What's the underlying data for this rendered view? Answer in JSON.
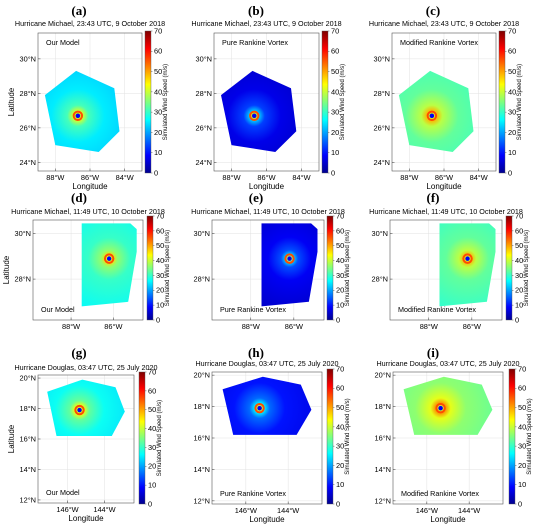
{
  "colors": {
    "jet": [
      "#00008f",
      "#0000ff",
      "#007fff",
      "#00ffff",
      "#7fff7f",
      "#ffff00",
      "#ff7f00",
      "#ff0000",
      "#7f0000"
    ]
  },
  "chart_data": [
    {
      "letter": "(a)",
      "type": "heatmap",
      "title": "Hurricane Michael, 23:43 UTC, 9 October 2018",
      "model": "Our Model",
      "xlabel": "Longitude",
      "ylabel": "Latitude",
      "cbar_label": "Simulated Wind Speed (m/s)",
      "cbar_ticks": [
        "0",
        "10",
        "20",
        "30",
        "40",
        "50",
        "60",
        "70"
      ],
      "clim": [
        0,
        70
      ],
      "xlim": [
        -89,
        -83
      ],
      "ylim": [
        23.5,
        31.5
      ],
      "xticks": [
        {
          "value": -88,
          "label": "88°W"
        },
        {
          "value": -86,
          "label": "86°W"
        },
        {
          "value": -84,
          "label": "84°W"
        }
      ],
      "yticks": [
        {
          "value": 24,
          "label": "24°N"
        },
        {
          "value": 26,
          "label": "26°N"
        },
        {
          "value": 28,
          "label": "28°N"
        },
        {
          "value": 30,
          "label": "30°N"
        }
      ],
      "center": [
        -86.7,
        26.7
      ],
      "polygon": [
        [
          -88.6,
          27.9
        ],
        [
          -86.8,
          29.3
        ],
        [
          -84.6,
          28.3
        ],
        [
          -84.3,
          25.8
        ],
        [
          -85.5,
          24.6
        ],
        [
          -88.0,
          25.0
        ]
      ],
      "background_speed": 23
    },
    {
      "letter": "(b)",
      "type": "heatmap",
      "title": "Hurricane Michael, 23:43 UTC, 9 October 2018",
      "model": "Pure Rankine Vortex",
      "xlabel": "Longitude",
      "ylabel": "",
      "cbar_label": "Simulated Wind Speed (m/s)",
      "cbar_ticks": [
        "0",
        "10",
        "20",
        "30",
        "40",
        "50",
        "60",
        "70"
      ],
      "clim": [
        0,
        70
      ],
      "xlim": [
        -89,
        -83
      ],
      "ylim": [
        23.5,
        31.5
      ],
      "xticks": [
        {
          "value": -88,
          "label": "88°W"
        },
        {
          "value": -86,
          "label": "86°W"
        },
        {
          "value": -84,
          "label": "84°W"
        }
      ],
      "yticks": [
        {
          "value": 24,
          "label": "24°N"
        },
        {
          "value": 26,
          "label": "26°N"
        },
        {
          "value": 28,
          "label": "28°N"
        },
        {
          "value": 30,
          "label": "30°N"
        }
      ],
      "center": [
        -86.7,
        26.7
      ],
      "polygon": [
        [
          -88.6,
          27.9
        ],
        [
          -86.8,
          29.3
        ],
        [
          -84.6,
          28.3
        ],
        [
          -84.3,
          25.8
        ],
        [
          -85.5,
          24.6
        ],
        [
          -88.0,
          25.0
        ]
      ],
      "background_speed": 5
    },
    {
      "letter": "(c)",
      "type": "heatmap",
      "title": "Hurricane Michael, 23:43 UTC, 9 October 2018",
      "model": "Modified Rankine Vortex",
      "xlabel": "Longitude",
      "ylabel": "",
      "cbar_label": "Simulated Wind Speed (m/s)",
      "cbar_ticks": [
        "0",
        "10",
        "20",
        "30",
        "40",
        "50",
        "60",
        "70"
      ],
      "clim": [
        0,
        70
      ],
      "xlim": [
        -89,
        -83
      ],
      "ylim": [
        23.5,
        31.5
      ],
      "xticks": [
        {
          "value": -88,
          "label": "88°W"
        },
        {
          "value": -86,
          "label": "86°W"
        },
        {
          "value": -84,
          "label": "84°W"
        }
      ],
      "yticks": [
        {
          "value": 24,
          "label": "24°N"
        },
        {
          "value": 26,
          "label": "26°N"
        },
        {
          "value": 28,
          "label": "28°N"
        },
        {
          "value": 30,
          "label": "30°N"
        }
      ],
      "center": [
        -86.7,
        26.7
      ],
      "polygon": [
        [
          -88.6,
          27.9
        ],
        [
          -86.8,
          29.3
        ],
        [
          -84.6,
          28.3
        ],
        [
          -84.3,
          25.8
        ],
        [
          -85.5,
          24.6
        ],
        [
          -88.0,
          25.0
        ]
      ],
      "background_speed": 31
    },
    {
      "letter": "(d)",
      "type": "heatmap",
      "title": "Hurricane Michael, 11:49 UTC, 10 October 2018",
      "model": "Our Model",
      "xlabel": "",
      "ylabel": "Latitude",
      "cbar_label": "Simulated Wind Speed (m/s)",
      "cbar_ticks": [
        "0",
        "10",
        "20",
        "30",
        "40",
        "50",
        "60",
        "70"
      ],
      "clim": [
        0,
        70
      ],
      "xlim": [
        -89.8,
        -84.6
      ],
      "ylim": [
        26.2,
        30.6
      ],
      "xticks": [
        {
          "value": -88,
          "label": "88°W"
        },
        {
          "value": -86,
          "label": "86°W"
        }
      ],
      "yticks": [
        {
          "value": 28,
          "label": "28°N"
        },
        {
          "value": 30,
          "label": "30°N"
        }
      ],
      "center": [
        -86.2,
        28.9
      ],
      "polygon": [
        [
          -87.5,
          30.45
        ],
        [
          -85.2,
          30.45
        ],
        [
          -84.9,
          30.2
        ],
        [
          -84.9,
          29.2
        ],
        [
          -85.3,
          27.0
        ],
        [
          -87.5,
          26.8
        ]
      ],
      "background_speed": 28
    },
    {
      "letter": "(e)",
      "type": "heatmap",
      "title": "Hurricane Michael, 11:49 UTC, 10 October 2018",
      "model": "Pure Rankine Vortex",
      "xlabel": "",
      "ylabel": "",
      "cbar_label": "Simulated Wind Speed (m/s)",
      "cbar_ticks": [
        "0",
        "10",
        "20",
        "30",
        "40",
        "50",
        "60",
        "70"
      ],
      "clim": [
        0,
        70
      ],
      "xlim": [
        -89.8,
        -84.6
      ],
      "ylim": [
        26.2,
        30.6
      ],
      "xticks": [
        {
          "value": -88,
          "label": "88°W"
        },
        {
          "value": -86,
          "label": "86°W"
        }
      ],
      "yticks": [
        {
          "value": 28,
          "label": "28°N"
        },
        {
          "value": 30,
          "label": "30°N"
        }
      ],
      "center": [
        -86.2,
        28.9
      ],
      "polygon": [
        [
          -87.5,
          30.45
        ],
        [
          -85.2,
          30.45
        ],
        [
          -84.9,
          30.2
        ],
        [
          -84.9,
          29.2
        ],
        [
          -85.3,
          27.0
        ],
        [
          -87.5,
          26.8
        ]
      ],
      "background_speed": 6
    },
    {
      "letter": "(f)",
      "type": "heatmap",
      "title": "Hurricane Michael, 11:49 UTC, 10 October 2018",
      "model": "Modified Rankine Vortex",
      "xlabel": "",
      "ylabel": "",
      "cbar_label": "Simulated Wind Speed (m/s)",
      "cbar_ticks": [
        "0",
        "10",
        "20",
        "30",
        "40",
        "50",
        "60",
        "70"
      ],
      "clim": [
        0,
        70
      ],
      "xlim": [
        -89.8,
        -84.6
      ],
      "ylim": [
        26.2,
        30.6
      ],
      "xticks": [
        {
          "value": -88,
          "label": "88°W"
        },
        {
          "value": -86,
          "label": "86°W"
        }
      ],
      "yticks": [
        {
          "value": 28,
          "label": "28°N"
        },
        {
          "value": 30,
          "label": "30°N"
        }
      ],
      "center": [
        -86.2,
        28.9
      ],
      "polygon": [
        [
          -87.5,
          30.45
        ],
        [
          -85.2,
          30.45
        ],
        [
          -84.9,
          30.2
        ],
        [
          -84.9,
          29.2
        ],
        [
          -85.3,
          27.0
        ],
        [
          -87.5,
          26.8
        ]
      ],
      "background_speed": 31
    },
    {
      "letter": "(g)",
      "type": "heatmap",
      "title": "Hurricane Douglas, 03:47 UTC, 25 July 2020",
      "model": "Our Model",
      "xlabel": "Longitude",
      "ylabel": "Latitude",
      "cbar_label": "Simulated Wind Speed (m/s)",
      "cbar_ticks": [
        "0",
        "10",
        "20",
        "30",
        "40",
        "50",
        "60",
        "70"
      ],
      "clim": [
        0,
        70
      ],
      "xlim": [
        -147.6,
        -142.4
      ],
      "ylim": [
        11.8,
        20.2
      ],
      "xticks": [
        {
          "value": -146,
          "label": "146°W"
        },
        {
          "value": -144,
          "label": "144°W"
        }
      ],
      "yticks": [
        {
          "value": 12,
          "label": "12°N"
        },
        {
          "value": 14,
          "label": "14°N"
        },
        {
          "value": 16,
          "label": "16°N"
        },
        {
          "value": 18,
          "label": "18°N"
        },
        {
          "value": 20,
          "label": "20°N"
        }
      ],
      "center": [
        -145.35,
        17.9
      ],
      "polygon": [
        [
          -147.1,
          19.1
        ],
        [
          -145.2,
          19.9
        ],
        [
          -143.4,
          19.4
        ],
        [
          -142.9,
          17.8
        ],
        [
          -143.6,
          16.2
        ],
        [
          -146.6,
          16.2
        ]
      ],
      "background_speed": 25
    },
    {
      "letter": "(h)",
      "type": "heatmap",
      "title": "Hurricane Douglas, 03:47 UTC, 25 July 2020",
      "model": "Pure Rankine Vortex",
      "xlabel": "Longitude",
      "ylabel": "",
      "cbar_label": "Simulated Wind Speed (m/s)",
      "cbar_ticks": [
        "0",
        "10",
        "20",
        "30",
        "40",
        "50",
        "60",
        "70"
      ],
      "clim": [
        0,
        70
      ],
      "xlim": [
        -147.6,
        -142.4
      ],
      "ylim": [
        11.8,
        20.2
      ],
      "xticks": [
        {
          "value": -146,
          "label": "146°W"
        },
        {
          "value": -144,
          "label": "144°W"
        }
      ],
      "yticks": [
        {
          "value": 12,
          "label": "12°N"
        },
        {
          "value": 14,
          "label": "14°N"
        },
        {
          "value": 16,
          "label": "16°N"
        },
        {
          "value": 18,
          "label": "18°N"
        },
        {
          "value": 20,
          "label": "20°N"
        }
      ],
      "center": [
        -145.35,
        17.9
      ],
      "polygon": [
        [
          -147.1,
          19.1
        ],
        [
          -145.2,
          19.9
        ],
        [
          -143.4,
          19.4
        ],
        [
          -142.9,
          17.8
        ],
        [
          -143.6,
          16.2
        ],
        [
          -146.6,
          16.2
        ]
      ],
      "background_speed": 8
    },
    {
      "letter": "(i)",
      "type": "heatmap",
      "title": "Hurricane Douglas, 03:47 UTC, 25 July 2020",
      "model": "Modified Rankine Vortex",
      "xlabel": "Longitude",
      "ylabel": "",
      "cbar_label": "Simulated Wind Speed (m/s)",
      "cbar_ticks": [
        "0",
        "10",
        "20",
        "30",
        "40",
        "50",
        "60",
        "70"
      ],
      "clim": [
        0,
        70
      ],
      "xlim": [
        -147.6,
        -142.4
      ],
      "ylim": [
        11.8,
        20.2
      ],
      "xticks": [
        {
          "value": -146,
          "label": "146°W"
        },
        {
          "value": -144,
          "label": "144°W"
        }
      ],
      "yticks": [
        {
          "value": 12,
          "label": "12°N"
        },
        {
          "value": 14,
          "label": "14°N"
        },
        {
          "value": 16,
          "label": "16°N"
        },
        {
          "value": 18,
          "label": "18°N"
        },
        {
          "value": 20,
          "label": "20°N"
        }
      ],
      "center": [
        -145.35,
        17.9
      ],
      "polygon": [
        [
          -147.1,
          19.1
        ],
        [
          -145.2,
          19.9
        ],
        [
          -143.4,
          19.4
        ],
        [
          -142.9,
          17.8
        ],
        [
          -143.6,
          16.2
        ],
        [
          -146.6,
          16.2
        ]
      ],
      "background_speed": 34
    }
  ]
}
